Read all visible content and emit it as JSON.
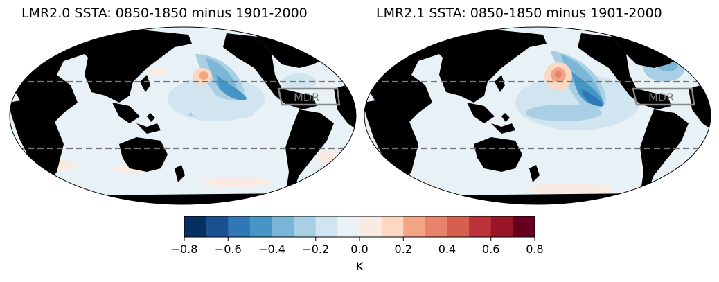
{
  "panels": [
    {
      "title": "LMR2.0 SSTA: 0850-1850 minus 1901-2000",
      "region_label": "MDR"
    },
    {
      "title": "LMR2.1 SSTA: 0850-1850 minus 1901-2000",
      "region_label": "MDR"
    }
  ],
  "colorbar": {
    "label": "K",
    "min": -0.8,
    "max": 0.8,
    "step": 0.1,
    "tick_labels": [
      "−0.8",
      "−0.6",
      "−0.4",
      "−0.2",
      "0.0",
      "0.2",
      "0.4",
      "0.6",
      "0.8"
    ],
    "colors": [
      "#053061",
      "#1a5190",
      "#2f78b5",
      "#4596c6",
      "#7ab6d6",
      "#a8cfe3",
      "#d1e5f0",
      "#eaf2f6",
      "#f9ebe4",
      "#fdd7c1",
      "#f3a583",
      "#e6836a",
      "#d6604d",
      "#bc3238",
      "#981426",
      "#67001f"
    ]
  },
  "map_style": {
    "land_color": "#000000",
    "ocean_background": "#e8f1f5",
    "guide_lines": "dashed gray at 10N and 20S",
    "projection": "Robinson, Pacific-centered"
  }
}
